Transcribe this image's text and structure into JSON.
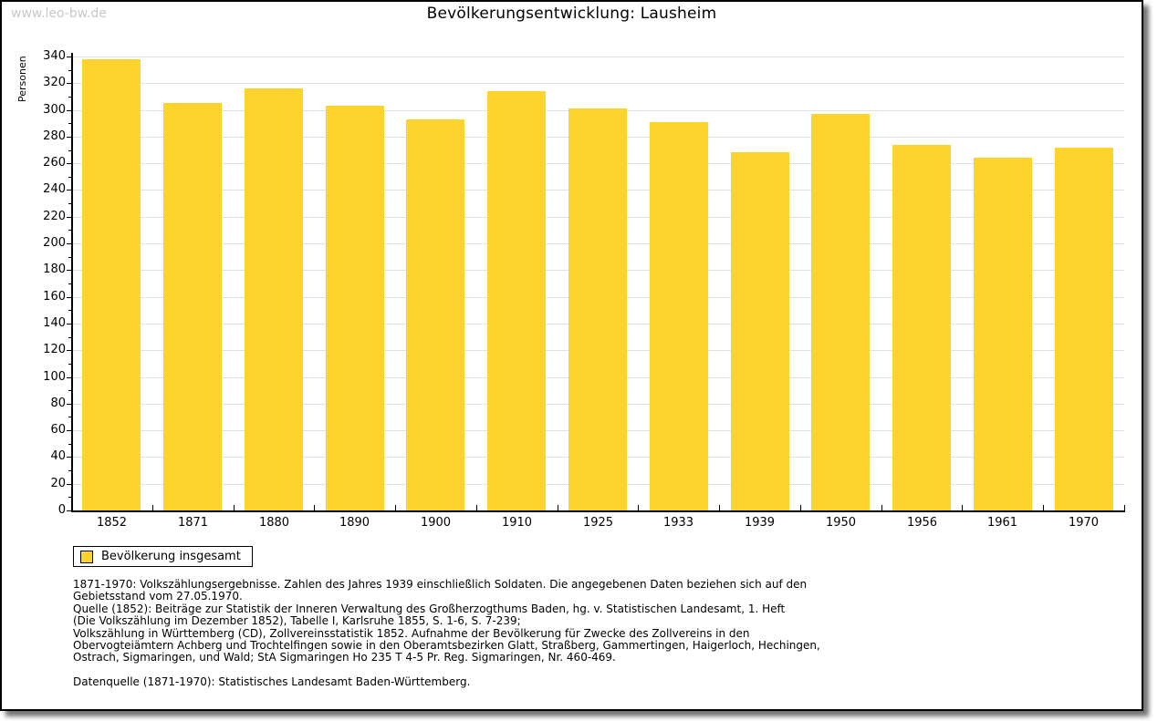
{
  "watermark": "www.leo-bw.de",
  "title": "Bevölkerungsentwicklung: Lausheim",
  "chart_data": {
    "type": "bar",
    "title": "Bevölkerungsentwicklung: Lausheim",
    "xlabel": "",
    "ylabel": "Personen",
    "categories": [
      "1852",
      "1871",
      "1880",
      "1890",
      "1900",
      "1910",
      "1925",
      "1933",
      "1939",
      "1950",
      "1956",
      "1961",
      "1970"
    ],
    "values": [
      338,
      305,
      316,
      303,
      293,
      314,
      301,
      291,
      268,
      297,
      274,
      264,
      272
    ],
    "series_name": "Bevölkerung insgesamt",
    "ylim": [
      0,
      340
    ],
    "ytick_step": 20,
    "ytick_minor_step": 10,
    "grid": true,
    "gridline_color": "#e0e0e0",
    "bar_color": "#fdd32e",
    "legend_position": "bottom-left"
  },
  "legend": {
    "label": "Bevölkerung insgesamt",
    "swatch_color": "#fdd32e"
  },
  "notes": {
    "lines": [
      "1871-1970: Volkszählungsergebnisse. Zahlen des Jahres 1939 einschließlich Soldaten. Die angegebenen Daten beziehen sich auf den",
      "Gebietsstand vom 27.05.1970.",
      "Quelle (1852): Beiträge zur Statistik der Inneren Verwaltung des Großherzogthums Baden, hg. v. Statistischen Landesamt, 1. Heft",
      "(Die Volkszählung im Dezember 1852), Tabelle I, Karlsruhe 1855, S. 1-6, S. 7-239;",
      "Volkszählung in Württemberg (CD), Zollvereinsstatistik 1852. Aufnahme der Bevölkerung für Zwecke des Zollvereins in den",
      "Obervogteiämtern Achberg und Trochtelfingen sowie in den Oberamtsbezirken Glatt, Straßberg, Gammertingen, Haigerloch, Hechingen,",
      "Ostrach, Sigmaringen, und Wald; StA Sigmaringen Ho 235 T 4-5 Pr. Reg. Sigmaringen, Nr. 460-469.",
      "",
      "Datenquelle (1871-1970): Statistisches Landesamt Baden-Württemberg."
    ]
  }
}
